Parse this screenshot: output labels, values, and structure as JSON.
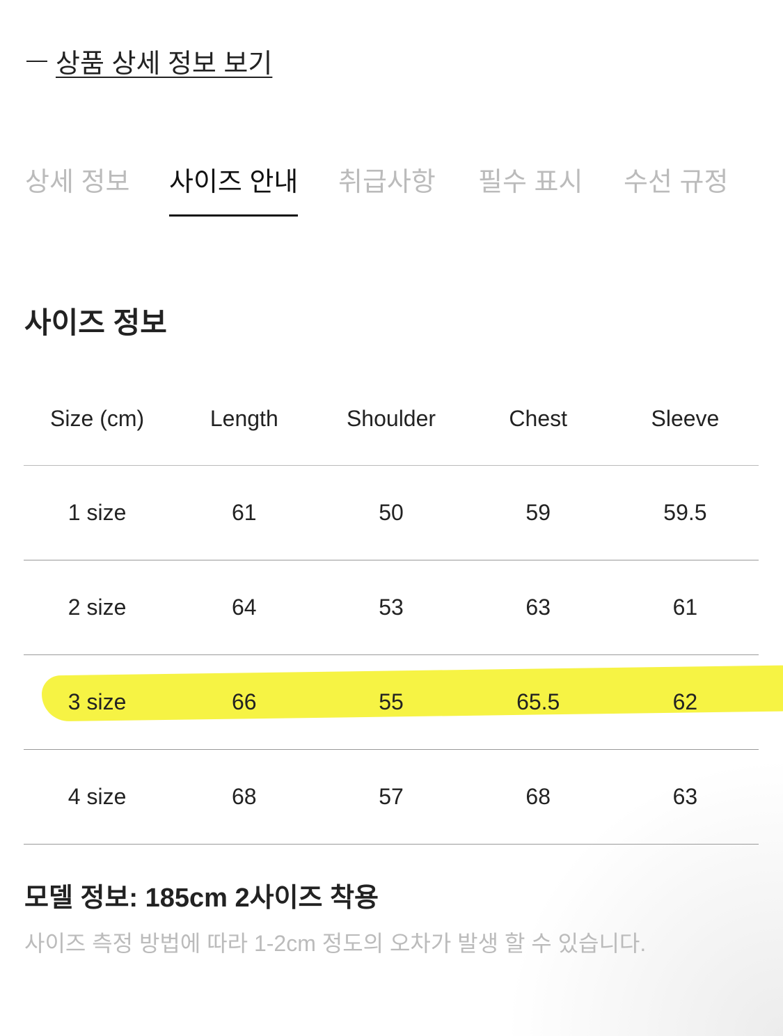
{
  "back_link": {
    "label": "상품 상세 정보 보기"
  },
  "tabs": [
    {
      "label": "상세 정보",
      "active": false
    },
    {
      "label": "사이즈 안내",
      "active": true
    },
    {
      "label": "취급사항",
      "active": false
    },
    {
      "label": "필수 표시",
      "active": false
    },
    {
      "label": "수선 규정",
      "active": false
    }
  ],
  "section_title": "사이즈 정보",
  "size_table": {
    "headers": [
      "Size (cm)",
      "Length",
      "Shoulder",
      "Chest",
      "Sleeve"
    ],
    "rows": [
      [
        "1 size",
        "61",
        "50",
        "59",
        "59.5"
      ],
      [
        "2 size",
        "64",
        "53",
        "63",
        "61"
      ],
      [
        "3 size",
        "66",
        "55",
        "65.5",
        "62"
      ],
      [
        "4 size",
        "68",
        "57",
        "68",
        "63"
      ]
    ],
    "highlighted_row": "3 size",
    "highlight_color": "#f6f23a"
  },
  "model_info": "모델 정보: 185cm 2사이즈 착용",
  "note": "사이즈 측정 방법에 따라 1-2cm 정도의 오차가 발생 할 수 있습니다."
}
